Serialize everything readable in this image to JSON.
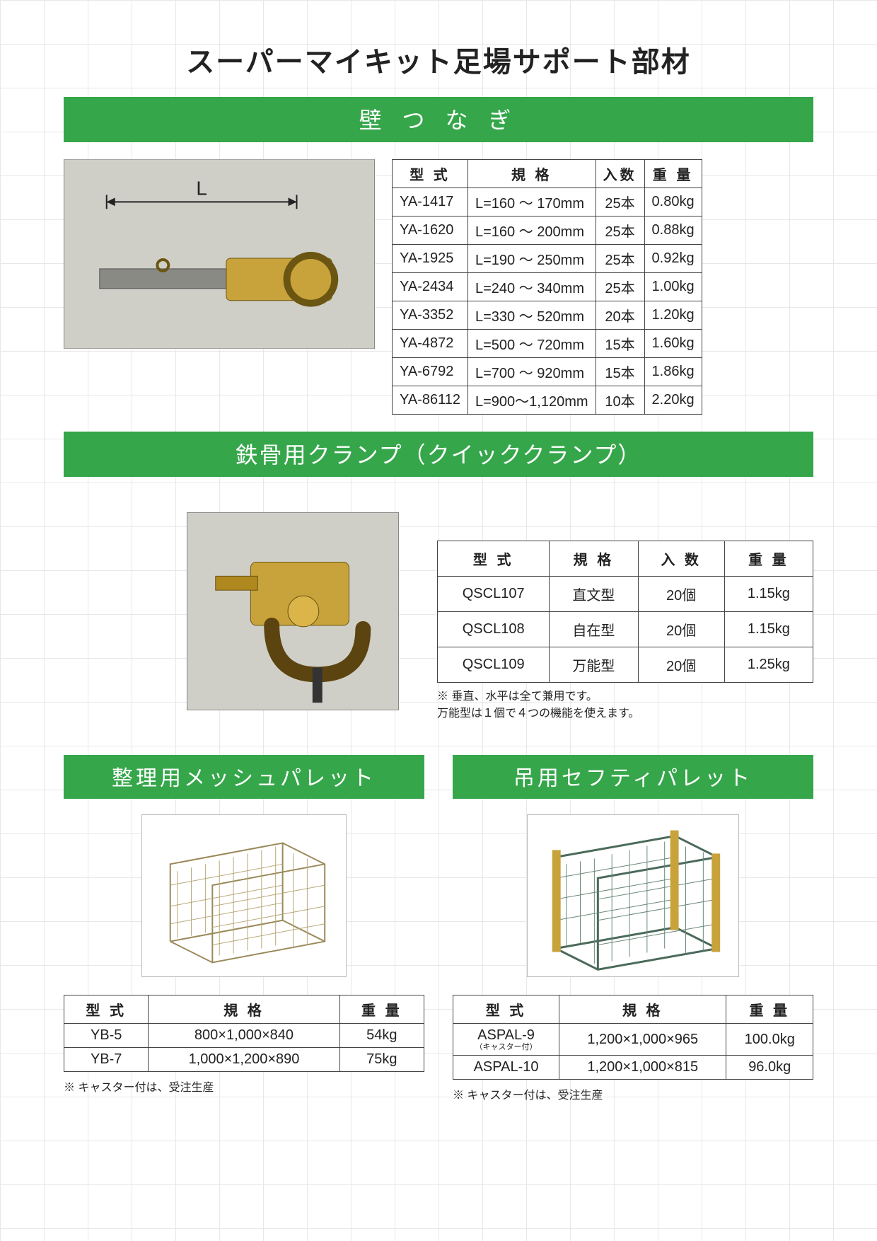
{
  "colors": {
    "green": "#35a64a",
    "border": "#444444",
    "text": "#222222",
    "photo_bg": "#cfcfc7"
  },
  "page_title": "スーパーマイキット足場サポート部材",
  "section1": {
    "heading": "壁 つ な ぎ",
    "photo_label": "L",
    "table": {
      "headers": [
        "型 式",
        "規 格",
        "入数",
        "重 量"
      ],
      "rows": [
        [
          "YA-1417",
          "L=160 ～  170mm",
          "25本",
          "0.80kg"
        ],
        [
          "YA-1620",
          "L=160 ～  200mm",
          "25本",
          "0.88kg"
        ],
        [
          "YA-1925",
          "L=190 ～  250mm",
          "25本",
          "0.92kg"
        ],
        [
          "YA-2434",
          "L=240 ～  340mm",
          "25本",
          "1.00kg"
        ],
        [
          "YA-3352",
          "L=330 ～  520mm",
          "20本",
          "1.20kg"
        ],
        [
          "YA-4872",
          "L=500 ～  720mm",
          "15本",
          "1.60kg"
        ],
        [
          "YA-6792",
          "L=700 ～  920mm",
          "15本",
          "1.86kg"
        ],
        [
          "YA-86112",
          "L=900～1,120mm",
          "10本",
          "2.20kg"
        ]
      ],
      "col_align": [
        "left",
        "left",
        "center",
        "right"
      ]
    }
  },
  "section2": {
    "heading": "鉄骨用クランプ（クイッククランプ）",
    "table": {
      "headers": [
        "型 式",
        "規 格",
        "入 数",
        "重 量"
      ],
      "rows": [
        [
          "QSCL107",
          "直文型",
          "20個",
          "1.15kg"
        ],
        [
          "QSCL108",
          "自在型",
          "20個",
          "1.15kg"
        ],
        [
          "QSCL109",
          "万能型",
          "20個",
          "1.25kg"
        ]
      ]
    },
    "notes": [
      "※  垂直、水平は全て兼用です。",
      "     万能型は１個で４つの機能を使えます。"
    ]
  },
  "section3": {
    "heading": "整理用メッシュパレット",
    "table": {
      "headers": [
        "型 式",
        "規 格",
        "重 量"
      ],
      "rows": [
        [
          "YB-5",
          "800×1,000×840",
          "54kg"
        ],
        [
          "YB-7",
          "1,000×1,200×890",
          "75kg"
        ]
      ]
    },
    "footnote": "※ キャスター付は、受注生産"
  },
  "section4": {
    "heading": "吊用セフティパレット",
    "table": {
      "headers": [
        "型 式",
        "規 格",
        "重 量"
      ],
      "rows": [
        [
          {
            "main": "ASPAL-9",
            "sub": "（キャスター付）"
          },
          "1,200×1,000×965",
          "100.0kg"
        ],
        [
          "ASPAL-10",
          "1,200×1,000×815",
          "96.0kg"
        ]
      ]
    },
    "footnote": "※ キャスター付は、受注生産"
  }
}
